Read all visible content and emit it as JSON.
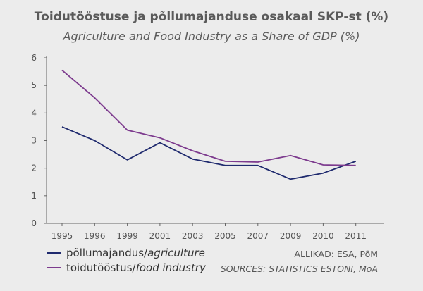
{
  "chart_data": {
    "type": "line",
    "title": "Toidutööstuse ja põllumajanduse osakaal SKP-st (%)",
    "subtitle": "Agriculture and Food Industry as a Share of GDP (%)",
    "categories": [
      "1995",
      "1996",
      "1999",
      "2001",
      "2003",
      "2005",
      "2007",
      "2009",
      "2010",
      "2011"
    ],
    "ylim": [
      0,
      6
    ],
    "yticks": [
      "0",
      "1",
      "2",
      "3",
      "4",
      "5",
      "6"
    ],
    "grid": false,
    "legend_position": "bottom-left",
    "series": [
      {
        "name_main": "põllumajandus/",
        "name_italic": "agriculture",
        "color": "#1f2a6e",
        "values": [
          3.5,
          3.0,
          2.3,
          2.92,
          2.33,
          2.1,
          2.1,
          1.6,
          1.82,
          2.25
        ]
      },
      {
        "name_main": "toidutööstus/",
        "name_italic": "food industry",
        "color": "#7d3b8e",
        "values": [
          5.55,
          4.55,
          3.38,
          3.1,
          2.63,
          2.25,
          2.22,
          2.46,
          2.12,
          2.1
        ]
      }
    ]
  },
  "sources": {
    "line1": "ALLIKAD: ESA, PõM",
    "line2": "SOURCES: STATISTICS ESTONI, MoA"
  }
}
